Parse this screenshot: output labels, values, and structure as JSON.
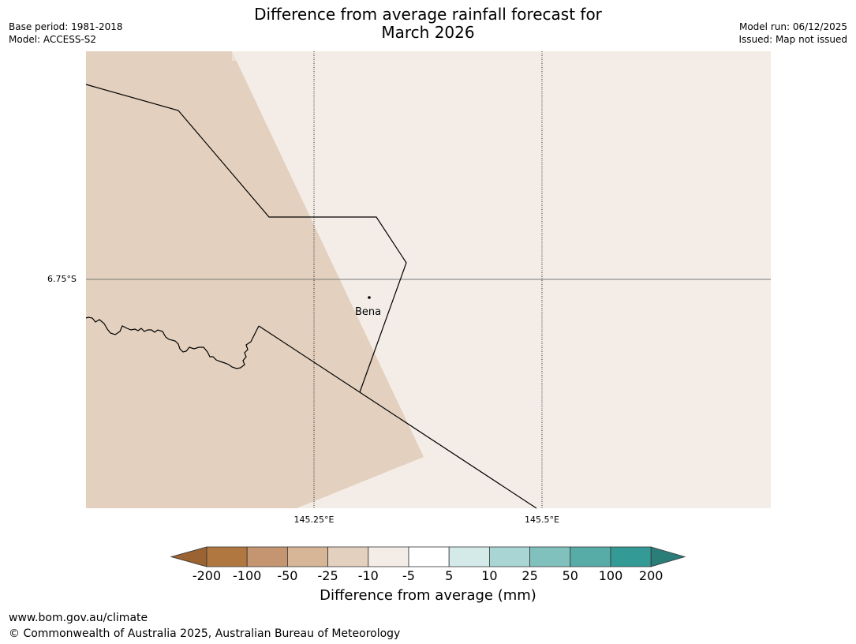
{
  "header": {
    "title_line1": "Difference from average rainfall forecast for",
    "title_line2": "March 2026",
    "base_period": "Base period: 1981-2018",
    "model": "Model: ACCESS-S2",
    "model_run": "Model run: 06/12/2025",
    "issued": "Issued: Map not issued"
  },
  "map": {
    "latitude_label": "6.75°S",
    "longitude_labels": [
      "145.25°E",
      "145.5°E"
    ],
    "place": {
      "name": "Bena"
    },
    "colors": {
      "dry_region": "#e3d0be",
      "near_average_region": "#f4ede7",
      "boundary": "#000000",
      "gridline": "#666666"
    }
  },
  "legend": {
    "title": "Difference from average (mm)",
    "ticks": [
      "-200",
      "-100",
      "-50",
      "-25",
      "-10",
      "-5",
      "5",
      "10",
      "25",
      "50",
      "100",
      "200"
    ],
    "colors": [
      "#9b6232",
      "#b07740",
      "#c49570",
      "#d6b696",
      "#e3d0be",
      "#f4ede7",
      "#ffffff",
      "#d4eae9",
      "#a9d6d4",
      "#80c1bd",
      "#58aca8",
      "#339a96",
      "#2a7d79"
    ]
  },
  "footer": {
    "url": "www.bom.gov.au/climate",
    "copyright": "© Commonwealth of Australia 2025, Australian Bureau of Meteorology"
  }
}
